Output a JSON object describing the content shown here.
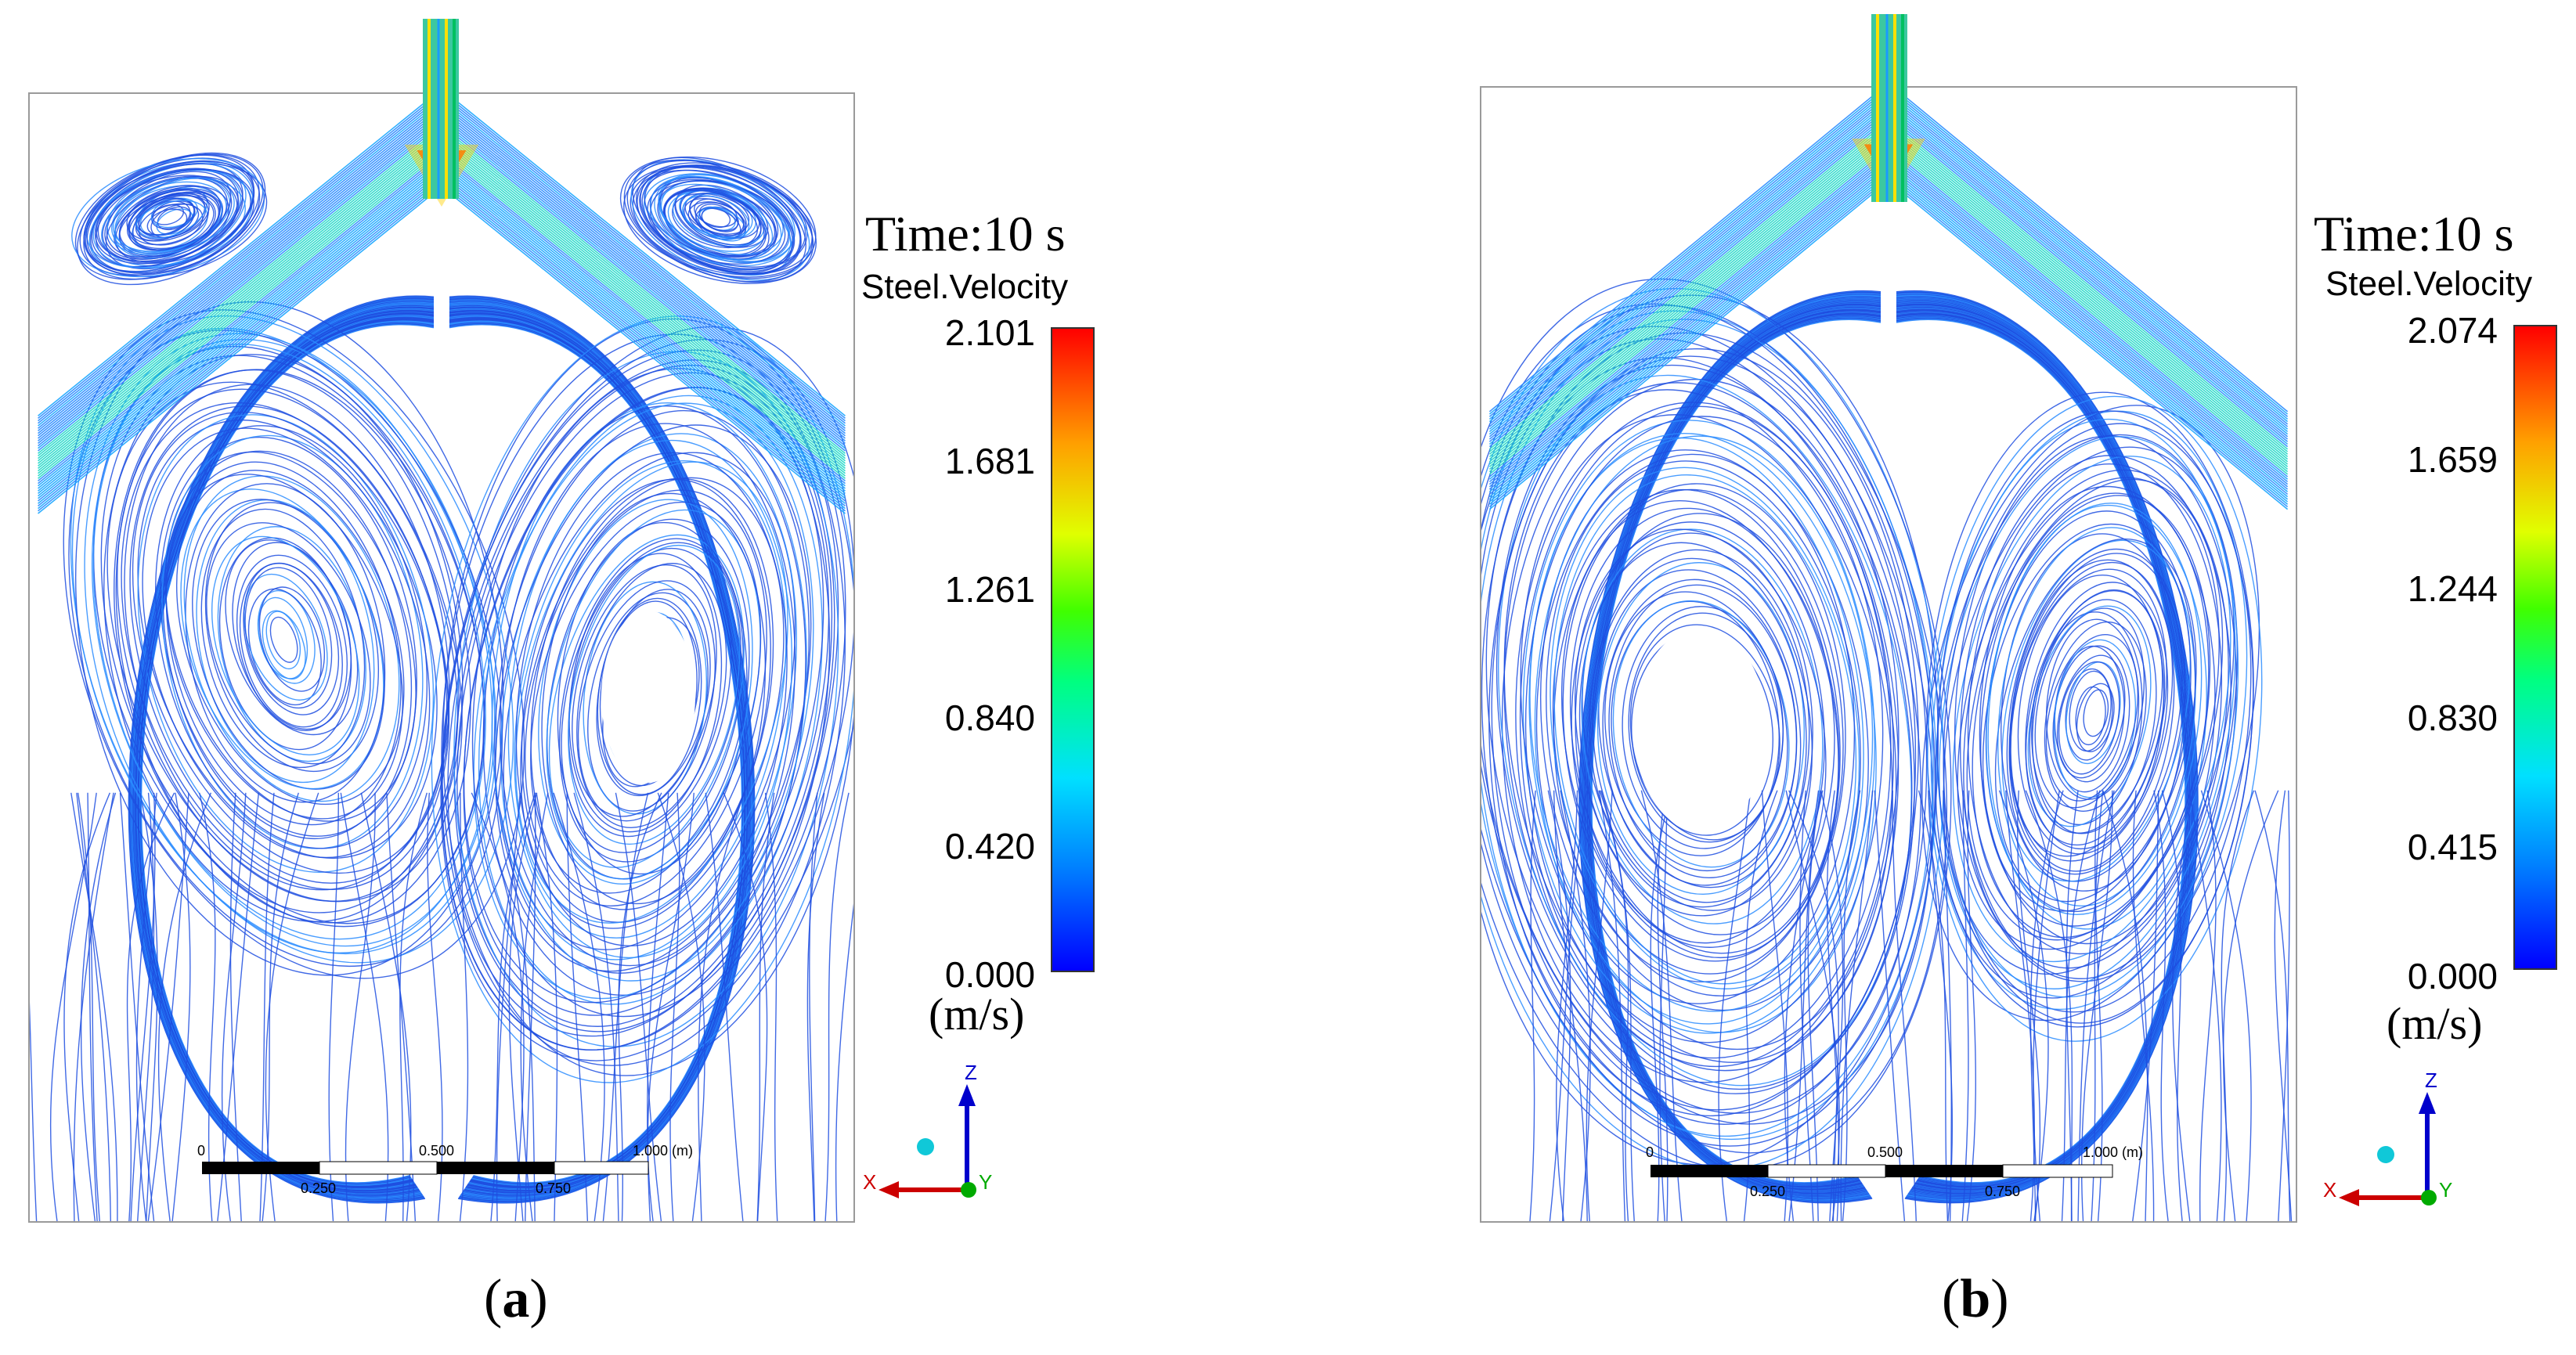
{
  "panels": [
    {
      "id": "a",
      "caption_open": "(",
      "caption_letter": "a",
      "caption_close": ")",
      "time_label": "Time:10 s",
      "variable": "Steel.Velocity",
      "ticks": [
        "2.101",
        "1.681",
        "1.261",
        "0.840",
        "0.420",
        "0.000"
      ],
      "unit": "(m/s)",
      "scale_labels": [
        "0",
        "0.500",
        "1.000  (m)",
        "0.250",
        "0.750"
      ],
      "axes": [
        "Z",
        "X",
        "Y"
      ]
    },
    {
      "id": "b",
      "caption_open": "(",
      "caption_letter": "b",
      "caption_close": ")",
      "time_label": "Time:10 s",
      "variable": "Steel.Velocity",
      "ticks": [
        "2.074",
        "1.659",
        "1.244",
        "0.830",
        "0.415",
        "0.000"
      ],
      "unit": "(m/s)",
      "scale_labels": [
        "0",
        "0.500",
        "1.000  (m)",
        "0.250",
        "0.750"
      ],
      "axes": [
        "Z",
        "X",
        "Y"
      ]
    }
  ],
  "colors": {
    "streamline": "#1f4fe0",
    "streamline_light": "#2a8cff",
    "jet": "#21d8c8",
    "jet_hot": "#ff3a00",
    "axis_z": "#0000cc",
    "axis_x": "#cc0000",
    "axis_y": "#00aa00"
  }
}
